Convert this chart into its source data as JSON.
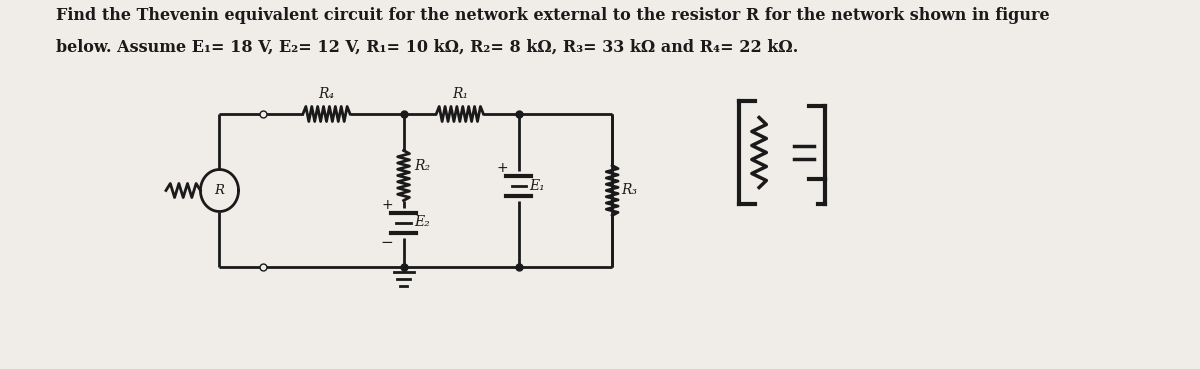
{
  "title_line1": "Find the Thevenin equivalent circuit for the network external to the resistor R for the network shown in figure",
  "title_line2": "below. Assume E₁= 18 V, E₂= 12 V, R₁= 10 kΩ, R₂= 8 kΩ, R₃= 33 kΩ and R₄= 22 kΩ.",
  "bg_color": "#f0ede8",
  "line_color": "#1a1a1a",
  "lw": 2.0,
  "font_size": 11.5,
  "label_fs": 10
}
